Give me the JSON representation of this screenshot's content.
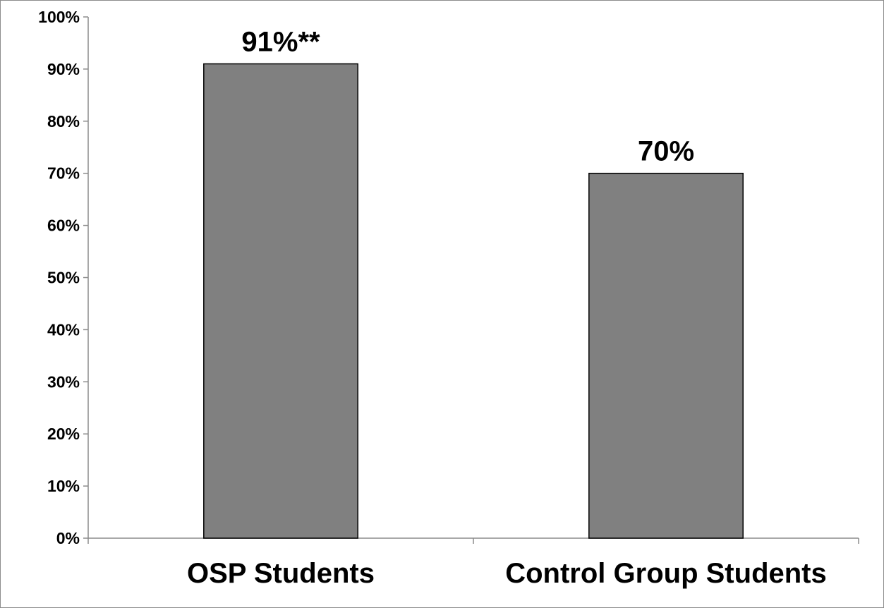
{
  "chart_data": {
    "type": "bar",
    "title": "",
    "xlabel": "",
    "ylabel": "",
    "categories": [
      "OSP Students",
      "Control Group Students"
    ],
    "values": [
      91,
      70
    ],
    "data_labels": [
      "91%**",
      "70%"
    ],
    "ylim": [
      0,
      100
    ],
    "yticks": [
      0,
      10,
      20,
      30,
      40,
      50,
      60,
      70,
      80,
      90,
      100
    ],
    "ytick_labels": [
      "0%",
      "10%",
      "20%",
      "30%",
      "40%",
      "50%",
      "60%",
      "70%",
      "80%",
      "90%",
      "100%"
    ],
    "grid": false,
    "legend": "none",
    "bar_color": "#808080",
    "bar_outline_color": "#000000"
  }
}
